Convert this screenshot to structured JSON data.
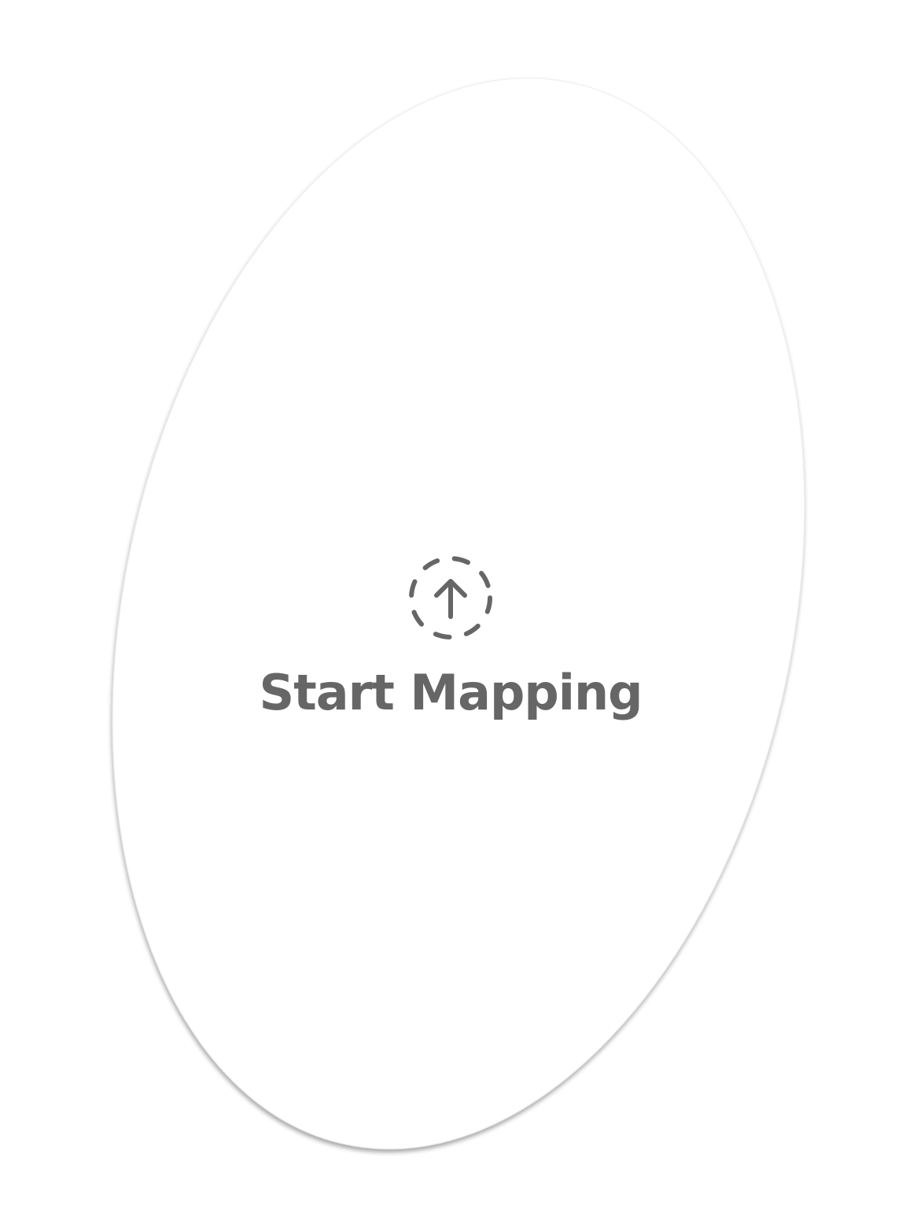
{
  "start_button": {
    "label": "Start Mapping",
    "icon": "upload-circle-dashed-icon"
  },
  "colors": {
    "background": "#ffffff",
    "disc": "#ffffff",
    "text": "#666666",
    "icon": "#666666"
  }
}
